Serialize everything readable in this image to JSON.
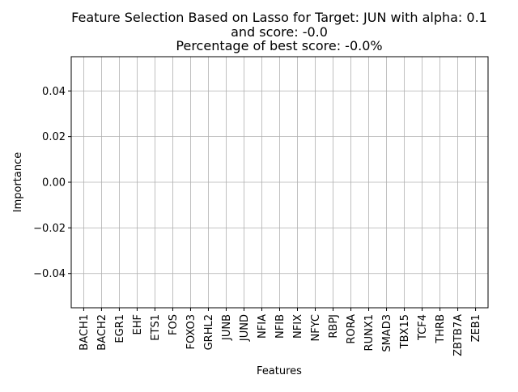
{
  "chart_data": {
    "type": "bar",
    "title_lines": [
      "Feature Selection Based on Lasso for Target: JUN with alpha: 0.1",
      "and score: -0.0",
      "Percentage of best score: -0.0%"
    ],
    "xlabel": "Features",
    "ylabel": "Importance",
    "categories": [
      "BACH1",
      "BACH2",
      "EGR1",
      "EHF",
      "ETS1",
      "FOS",
      "FOXO3",
      "GRHL2",
      "JUNB",
      "JUND",
      "NFIA",
      "NFIB",
      "NFIX",
      "NFYC",
      "RBPJ",
      "RORA",
      "RUNX1",
      "SMAD3",
      "TBX15",
      "TCF4",
      "THRB",
      "ZBTB7A",
      "ZEB1"
    ],
    "values": [
      0,
      0,
      0,
      0,
      0,
      0,
      0,
      0,
      0,
      0,
      0,
      0,
      0,
      0,
      0,
      0,
      0,
      0,
      0,
      0,
      0,
      0,
      0
    ],
    "ylim": [
      -0.055,
      0.055
    ],
    "yticks": [
      -0.04,
      -0.02,
      0.0,
      0.02,
      0.04
    ],
    "ytick_labels": [
      "−0.04",
      "−0.02",
      "0.00",
      "0.02",
      "0.04"
    ],
    "grid": true,
    "colors": {
      "bar": "#1f77b4",
      "grid": "#b0b0b0",
      "axis": "#000000"
    }
  }
}
